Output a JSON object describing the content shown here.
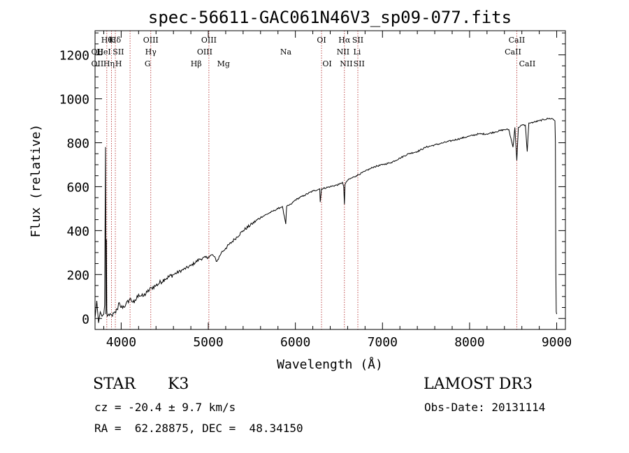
{
  "chart_data": {
    "type": "line",
    "title": "spec-56611-GAC061N46V3_sp09-077.fits",
    "xlabel": "Wavelength (Å)",
    "ylabel": "Flux (relative)",
    "xlim": [
      3700,
      9100
    ],
    "ylim": [
      -50,
      1310
    ],
    "x_ticks": [
      4000,
      5000,
      6000,
      7000,
      8000,
      9000
    ],
    "y_ticks": [
      0,
      200,
      400,
      600,
      800,
      1000,
      1200
    ],
    "grid": false,
    "series": [
      {
        "name": "flux",
        "x": [
          3700,
          3720,
          3740,
          3760,
          3780,
          3800,
          3810,
          3820,
          3825,
          3830,
          3835,
          3840,
          3850,
          3880,
          3900,
          3930,
          3960,
          3970,
          4000,
          4050,
          4100,
          4150,
          4200,
          4250,
          4300,
          4350,
          4400,
          4500,
          4600,
          4700,
          4800,
          4900,
          5000,
          5050,
          5100,
          5150,
          5200,
          5300,
          5400,
          5500,
          5600,
          5700,
          5800,
          5850,
          5890,
          5895,
          5900,
          5950,
          6000,
          6100,
          6200,
          6280,
          6285,
          6300,
          6400,
          6500,
          6540,
          6555,
          6563,
          6570,
          6600,
          6700,
          6800,
          6900,
          7000,
          7100,
          7200,
          7300,
          7400,
          7500,
          7600,
          7700,
          7800,
          7900,
          8000,
          8100,
          8200,
          8300,
          8400,
          8450,
          8498,
          8520,
          8542,
          8560,
          8600,
          8640,
          8662,
          8680,
          8700,
          8800,
          8900,
          8950,
          8980,
          8985,
          8990,
          8995,
          9000
        ],
        "values": [
          0,
          80,
          -20,
          30,
          10,
          20,
          60,
          780,
          20,
          360,
          40,
          10,
          15,
          20,
          10,
          30,
          40,
          70,
          50,
          60,
          90,
          70,
          110,
          100,
          120,
          140,
          150,
          180,
          200,
          220,
          240,
          270,
          280,
          290,
          260,
          300,
          320,
          360,
          400,
          430,
          460,
          480,
          500,
          510,
          430,
          480,
          510,
          520,
          540,
          560,
          580,
          590,
          530,
          590,
          600,
          610,
          620,
          600,
          520,
          610,
          630,
          650,
          670,
          690,
          700,
          710,
          730,
          750,
          760,
          780,
          790,
          800,
          810,
          820,
          830,
          840,
          840,
          850,
          860,
          860,
          780,
          870,
          720,
          870,
          880,
          880,
          760,
          890,
          890,
          900,
          910,
          910,
          900,
          800,
          220,
          30,
          20
        ]
      }
    ],
    "spectral_lines": [
      {
        "wl": 3835,
        "label": "Hθ",
        "row": 0
      },
      {
        "wl": 3889,
        "label": "K",
        "row": 0
      },
      {
        "wl": 3933,
        "label": "Hδ",
        "row": 0
      },
      {
        "wl": 4102,
        "label": "",
        "row": 0
      },
      {
        "wl": 4340,
        "label": "OIII",
        "row": 0
      },
      {
        "wl": 5007,
        "label": "OIII",
        "row": 0
      },
      {
        "wl": 6300,
        "label": "OI",
        "row": 0
      },
      {
        "wl": 6563,
        "label": "Hα",
        "row": 0
      },
      {
        "wl": 6717,
        "label": "SII",
        "row": 0
      },
      {
        "wl": 8542,
        "label": "CaII",
        "row": 0
      },
      {
        "wl": 3727,
        "label": "OII",
        "row": 1
      },
      {
        "wl": 3800,
        "label": "HeI",
        "row": 1
      },
      {
        "wl": 3968,
        "label": "SII",
        "row": 1
      },
      {
        "wl": 4340,
        "label": "Hγ",
        "row": 1
      },
      {
        "wl": 4959,
        "label": "OIII",
        "row": 1
      },
      {
        "wl": 5890,
        "label": "Na",
        "row": 1
      },
      {
        "wl": 6548,
        "label": "NII",
        "row": 1
      },
      {
        "wl": 6708,
        "label": "Li",
        "row": 1
      },
      {
        "wl": 8498,
        "label": "CaII",
        "row": 1
      },
      {
        "wl": 3727,
        "label": "OII",
        "row": 2
      },
      {
        "wl": 3860,
        "label": "Hη",
        "row": 2
      },
      {
        "wl": 3970,
        "label": "H",
        "row": 2
      },
      {
        "wl": 4304,
        "label": "G",
        "row": 2
      },
      {
        "wl": 4861,
        "label": "Hβ",
        "row": 2
      },
      {
        "wl": 5175,
        "label": "Mg",
        "row": 2
      },
      {
        "wl": 6364,
        "label": "OI",
        "row": 2
      },
      {
        "wl": 6584,
        "label": "NII",
        "row": 2
      },
      {
        "wl": 6731,
        "label": "SII",
        "row": 2
      },
      {
        "wl": 8662,
        "label": "CaII",
        "row": 2
      }
    ]
  },
  "info": {
    "object_class": "STAR",
    "subclass": "K3",
    "survey": "LAMOST DR3",
    "redshift": "cz = -20.4 ± 9.7 km/s",
    "obs_date": "Obs-Date: 20131114",
    "coords": "RA =  62.28875, DEC =  48.34150"
  }
}
